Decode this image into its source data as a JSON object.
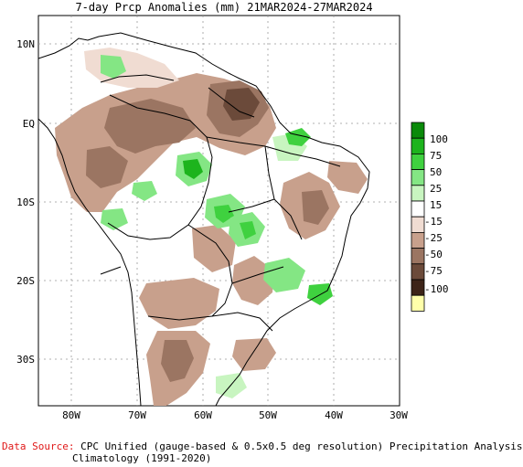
{
  "title": "7-day Prcp Anomalies (mm) 21MAR2024-27MAR2024",
  "latitude_labels": [
    "10N",
    "EQ",
    "10S",
    "20S",
    "30S"
  ],
  "longitude_labels": [
    "80W",
    "70W",
    "60W",
    "50W",
    "40W",
    "30W"
  ],
  "colorbar": {
    "labels": [
      "100",
      "75",
      "50",
      "25",
      "15",
      "-15",
      "-25",
      "-50",
      "-75",
      "-100"
    ],
    "colors": [
      "#0a8a0a",
      "#1db41d",
      "#3fd13f",
      "#84e684",
      "#c8f5c0",
      "#ffffff",
      "#f0dcd2",
      "#c8a08c",
      "#9b7562",
      "#6b4a3a",
      "#3d2418",
      "#ffffaa"
    ]
  },
  "footer": {
    "source_label": "Data Source:",
    "source_text": "CPC Unified (gauge-based & 0.5x0.5 deg resolution) Precipitation Analysis",
    "climatology": "Climatology (1991-2020)"
  }
}
